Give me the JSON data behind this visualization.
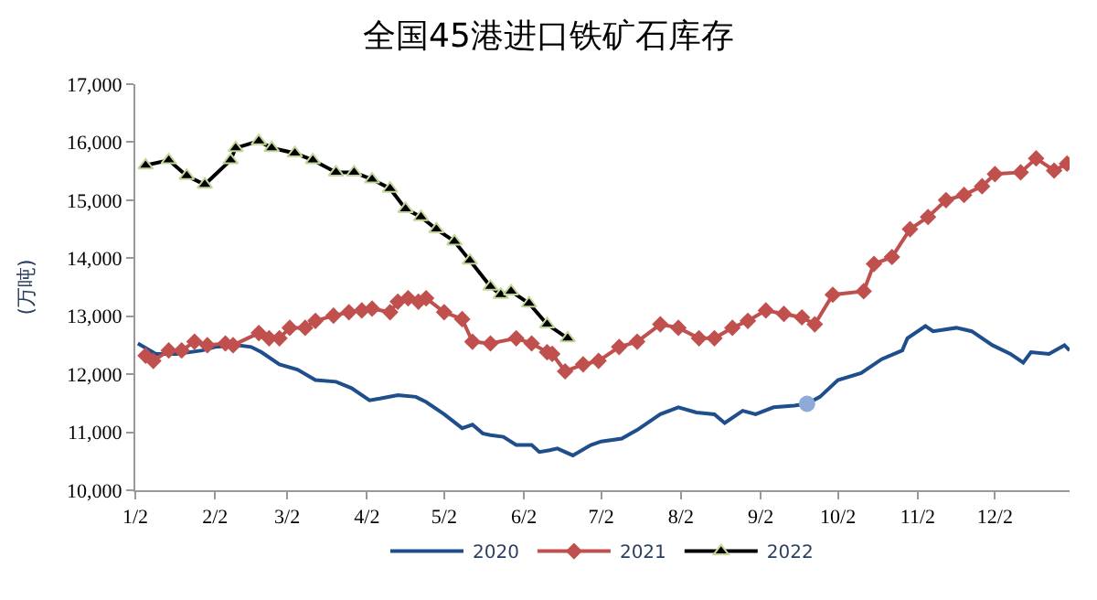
{
  "chart_data": {
    "type": "line",
    "title": "全国45港进口铁矿石库存",
    "ylabel": "(万吨)",
    "xlim": [
      "--01-02",
      "--12-31"
    ],
    "xticks": [
      {
        "value": "--01-02",
        "label": "1/2"
      },
      {
        "value": "--02-02",
        "label": "2/2"
      },
      {
        "value": "--03-02",
        "label": "3/2"
      },
      {
        "value": "--04-02",
        "label": "4/2"
      },
      {
        "value": "--05-02",
        "label": "5/2"
      },
      {
        "value": "--06-02",
        "label": "6/2"
      },
      {
        "value": "--07-02",
        "label": "7/2"
      },
      {
        "value": "--08-02",
        "label": "8/2"
      },
      {
        "value": "--09-02",
        "label": "9/2"
      },
      {
        "value": "--10-02",
        "label": "10/2"
      },
      {
        "value": "--11-02",
        "label": "11/2"
      },
      {
        "value": "--12-02",
        "label": "12/2"
      }
    ],
    "ylim": [
      10000,
      17000
    ],
    "yticks": [
      {
        "value": 10000,
        "label": "10,000"
      },
      {
        "value": 11000,
        "label": "11,000"
      },
      {
        "value": 12000,
        "label": "12,000"
      },
      {
        "value": 13000,
        "label": "13,000"
      },
      {
        "value": 14000,
        "label": "14,000"
      },
      {
        "value": 15000,
        "label": "15,000"
      },
      {
        "value": 16000,
        "label": "16,000"
      },
      {
        "value": 17000,
        "label": "17,000"
      }
    ],
    "legend": "bottom",
    "series": [
      {
        "name": "2020",
        "color": "#1f4e8c",
        "marker": "none",
        "x": [
          "--01-03",
          "--01-10",
          "--01-18",
          "--01-28",
          "--02-02",
          "--02-11",
          "--02-16",
          "--02-20",
          "--02-27",
          "--03-06",
          "--03-13",
          "--03-21",
          "--03-27",
          "--04-03",
          "--04-07",
          "--04-14",
          "--04-21",
          "--04-25",
          "--05-02",
          "--05-09",
          "--05-13",
          "--05-17",
          "--05-20",
          "--05-25",
          "--05-30",
          "--06-05",
          "--06-08",
          "--06-12",
          "--06-15",
          "--06-21",
          "--06-28",
          "--07-02",
          "--07-10",
          "--07-16",
          "--07-25",
          "--08-01",
          "--08-08",
          "--08-15",
          "--08-19",
          "--08-26",
          "--08-31",
          "--09-07",
          "--09-15",
          "--09-20",
          "--09-25",
          "--10-02",
          "--10-11",
          "--10-19",
          "--10-27",
          "--10-29",
          "--11-05",
          "--11-08",
          "--11-17",
          "--11-23",
          "--12-01",
          "--12-08",
          "--12-13",
          "--12-16",
          "--12-23",
          "--12-29",
          "--12-31"
        ],
        "values": [
          12530,
          12350,
          12350,
          12410,
          12470,
          12500,
          12470,
          12380,
          12170,
          12080,
          11900,
          11870,
          11760,
          11550,
          11580,
          11640,
          11610,
          11520,
          11310,
          11070,
          11130,
          10980,
          10950,
          10920,
          10780,
          10780,
          10660,
          10690,
          10720,
          10600,
          10780,
          10840,
          10890,
          11040,
          11310,
          11430,
          11340,
          11310,
          11160,
          11370,
          11310,
          11430,
          11460,
          11490,
          11610,
          11900,
          12020,
          12260,
          12410,
          12620,
          12830,
          12740,
          12800,
          12740,
          12500,
          12350,
          12200,
          12380,
          12350,
          12500,
          12410
        ]
      },
      {
        "name": "2021",
        "color": "#c0504d",
        "marker": "diamond",
        "x": [
          "--01-06",
          "--01-09",
          "--01-15",
          "--01-20",
          "--01-25",
          "--01-30",
          "--02-06",
          "--02-09",
          "--02-19",
          "--02-23",
          "--02-27",
          "--03-03",
          "--03-09",
          "--03-13",
          "--03-20",
          "--03-26",
          "--03-31",
          "--04-04",
          "--04-11",
          "--04-14",
          "--04-18",
          "--04-22",
          "--04-25",
          "--05-02",
          "--05-09",
          "--05-13",
          "--05-20",
          "--05-30",
          "--06-05",
          "--06-11",
          "--06-13",
          "--06-18",
          "--06-25",
          "--07-01",
          "--07-09",
          "--07-16",
          "--07-25",
          "--08-01",
          "--08-09",
          "--08-15",
          "--08-22",
          "--08-28",
          "--09-04",
          "--09-11",
          "--09-18",
          "--09-23",
          "--09-30",
          "--10-12",
          "--10-16",
          "--10-23",
          "--10-30",
          "--11-06",
          "--11-13",
          "--11-20",
          "--11-27",
          "--12-02",
          "--12-12",
          "--12-18",
          "--12-25",
          "--12-30"
        ],
        "values": [
          12320,
          12230,
          12410,
          12410,
          12560,
          12500,
          12530,
          12500,
          12710,
          12620,
          12620,
          12800,
          12800,
          12920,
          13010,
          13070,
          13100,
          13130,
          13070,
          13250,
          13310,
          13250,
          13310,
          13070,
          12950,
          12560,
          12530,
          12620,
          12530,
          12380,
          12350,
          12050,
          12170,
          12230,
          12470,
          12560,
          12860,
          12800,
          12620,
          12620,
          12800,
          12920,
          13100,
          13040,
          12980,
          12860,
          13370,
          13430,
          13900,
          14020,
          14500,
          14710,
          15000,
          15090,
          15240,
          15450,
          15480,
          15720,
          15510,
          15630
        ]
      },
      {
        "name": "2022",
        "color": "#000000",
        "marker": "triangle",
        "x": [
          "--01-06",
          "--01-15",
          "--01-22",
          "--01-29",
          "--02-08",
          "--02-10",
          "--02-19",
          "--02-24",
          "--03-05",
          "--03-12",
          "--03-21",
          "--03-28",
          "--04-04",
          "--04-11",
          "--04-17",
          "--04-23",
          "--04-29",
          "--05-06",
          "--05-12",
          "--05-20",
          "--05-24",
          "--05-28",
          "--06-04",
          "--06-11",
          "--06-19"
        ],
        "values": [
          15600,
          15690,
          15420,
          15270,
          15690,
          15900,
          16020,
          15900,
          15810,
          15690,
          15480,
          15480,
          15360,
          15200,
          14850,
          14710,
          14500,
          14290,
          13960,
          13510,
          13370,
          13430,
          13220,
          12860,
          12620
        ]
      },
      {
        "type": "scatter",
        "color": "#8eaadb",
        "marker": "circle",
        "x": [
          "--09-20"
        ],
        "values": [
          11490
        ]
      }
    ]
  }
}
